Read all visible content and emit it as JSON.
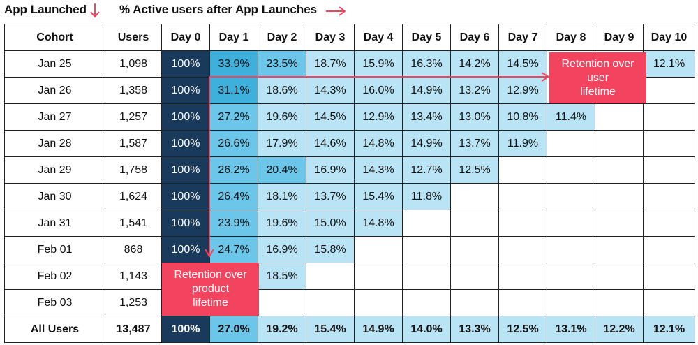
{
  "title_left": "App Launched",
  "title_right": "% Active users after App Launches",
  "colors": {
    "day0": "#1a3a5c",
    "dark": "#3fb0dc",
    "mid": "#6cc6ea",
    "light": "#b9e4f6",
    "empty": "#ffffff",
    "accent": "#f2445e"
  },
  "callouts": {
    "user": "Retention over\nuser\nlifetime",
    "product": "Retention over\nproduct\nlifetime"
  },
  "chart_data": {
    "type": "table",
    "title": "% Active users after App Launches",
    "columns": [
      "Cohort",
      "Users",
      "Day 0",
      "Day 1",
      "Day 2",
      "Day 3",
      "Day 4",
      "Day 5",
      "Day 6",
      "Day 7",
      "Day 8",
      "Day 9",
      "Day 10"
    ],
    "rows": [
      {
        "cohort": "Jan 25",
        "users": "1,098",
        "values": [
          "100%",
          "33.9%",
          "23.5%",
          "18.7%",
          "15.9%",
          "16.3%",
          "14.2%",
          "14.5%",
          "",
          "",
          "12.1%"
        ],
        "shades": [
          "day0",
          "dark",
          "mid",
          "light",
          "light",
          "light",
          "light",
          "light",
          "",
          "",
          "light"
        ]
      },
      {
        "cohort": "Jan 26",
        "users": "1,358",
        "values": [
          "100%",
          "31.1%",
          "18.6%",
          "14.3%",
          "16.0%",
          "14.9%",
          "13.2%",
          "12.9%",
          "",
          "",
          ""
        ],
        "shades": [
          "day0",
          "dark",
          "light",
          "light",
          "light",
          "light",
          "light",
          "light",
          "",
          "",
          ""
        ]
      },
      {
        "cohort": "Jan 27",
        "users": "1,257",
        "values": [
          "100%",
          "27.2%",
          "19.6%",
          "14.5%",
          "12.9%",
          "13.4%",
          "13.0%",
          "10.8%",
          "11.4%",
          "",
          ""
        ],
        "shades": [
          "day0",
          "mid",
          "light",
          "light",
          "light",
          "light",
          "light",
          "light",
          "light",
          "",
          ""
        ]
      },
      {
        "cohort": "Jan 28",
        "users": "1,587",
        "values": [
          "100%",
          "26.6%",
          "17.9%",
          "14.6%",
          "14.8%",
          "14.9%",
          "13.7%",
          "11.9%",
          "",
          "",
          ""
        ],
        "shades": [
          "day0",
          "mid",
          "light",
          "light",
          "light",
          "light",
          "light",
          "light",
          "",
          "",
          ""
        ]
      },
      {
        "cohort": "Jan 29",
        "users": "1,758",
        "values": [
          "100%",
          "26.2%",
          "20.4%",
          "16.9%",
          "14.3%",
          "12.7%",
          "12.5%",
          "",
          "",
          "",
          ""
        ],
        "shades": [
          "day0",
          "mid",
          "mid",
          "light",
          "light",
          "light",
          "light",
          "",
          "",
          "",
          ""
        ]
      },
      {
        "cohort": "Jan 30",
        "users": "1,624",
        "values": [
          "100%",
          "26.4%",
          "18.1%",
          "13.7%",
          "15.4%",
          "11.8%",
          "",
          "",
          "",
          "",
          ""
        ],
        "shades": [
          "day0",
          "mid",
          "light",
          "light",
          "light",
          "light",
          "",
          "",
          "",
          "",
          ""
        ]
      },
      {
        "cohort": "Jan 31",
        "users": "1,541",
        "values": [
          "100%",
          "23.9%",
          "19.6%",
          "15.0%",
          "14.8%",
          "",
          "",
          "",
          "",
          "",
          ""
        ],
        "shades": [
          "day0",
          "mid",
          "light",
          "light",
          "light",
          "",
          "",
          "",
          "",
          "",
          ""
        ]
      },
      {
        "cohort": "Feb 01",
        "users": "868",
        "values": [
          "100%",
          "24.7%",
          "16.9%",
          "15.8%",
          "",
          "",
          "",
          "",
          "",
          "",
          ""
        ],
        "shades": [
          "day0",
          "mid",
          "light",
          "light",
          "",
          "",
          "",
          "",
          "",
          "",
          ""
        ]
      },
      {
        "cohort": "Feb 02",
        "users": "1,143",
        "values": [
          "",
          "",
          "18.5%",
          "",
          "",
          "",
          "",
          "",
          "",
          "",
          ""
        ],
        "shades": [
          "",
          "",
          "light",
          "",
          "",
          "",
          "",
          "",
          "",
          "",
          ""
        ]
      },
      {
        "cohort": "Feb 03",
        "users": "1,253",
        "values": [
          "",
          "",
          "",
          "",
          "",
          "",
          "",
          "",
          "",
          "",
          ""
        ],
        "shades": [
          "",
          "",
          "",
          "",
          "",
          "",
          "",
          "",
          "",
          "",
          ""
        ]
      }
    ],
    "total": {
      "cohort": "All Users",
      "users": "13,487",
      "values": [
        "100%",
        "27.0%",
        "19.2%",
        "15.4%",
        "14.9%",
        "14.0%",
        "13.3%",
        "12.5%",
        "13.1%",
        "12.2%",
        "12.1%"
      ],
      "shades": [
        "day0",
        "mid",
        "light",
        "light",
        "light",
        "light",
        "light",
        "light",
        "light",
        "light",
        "light"
      ]
    }
  }
}
